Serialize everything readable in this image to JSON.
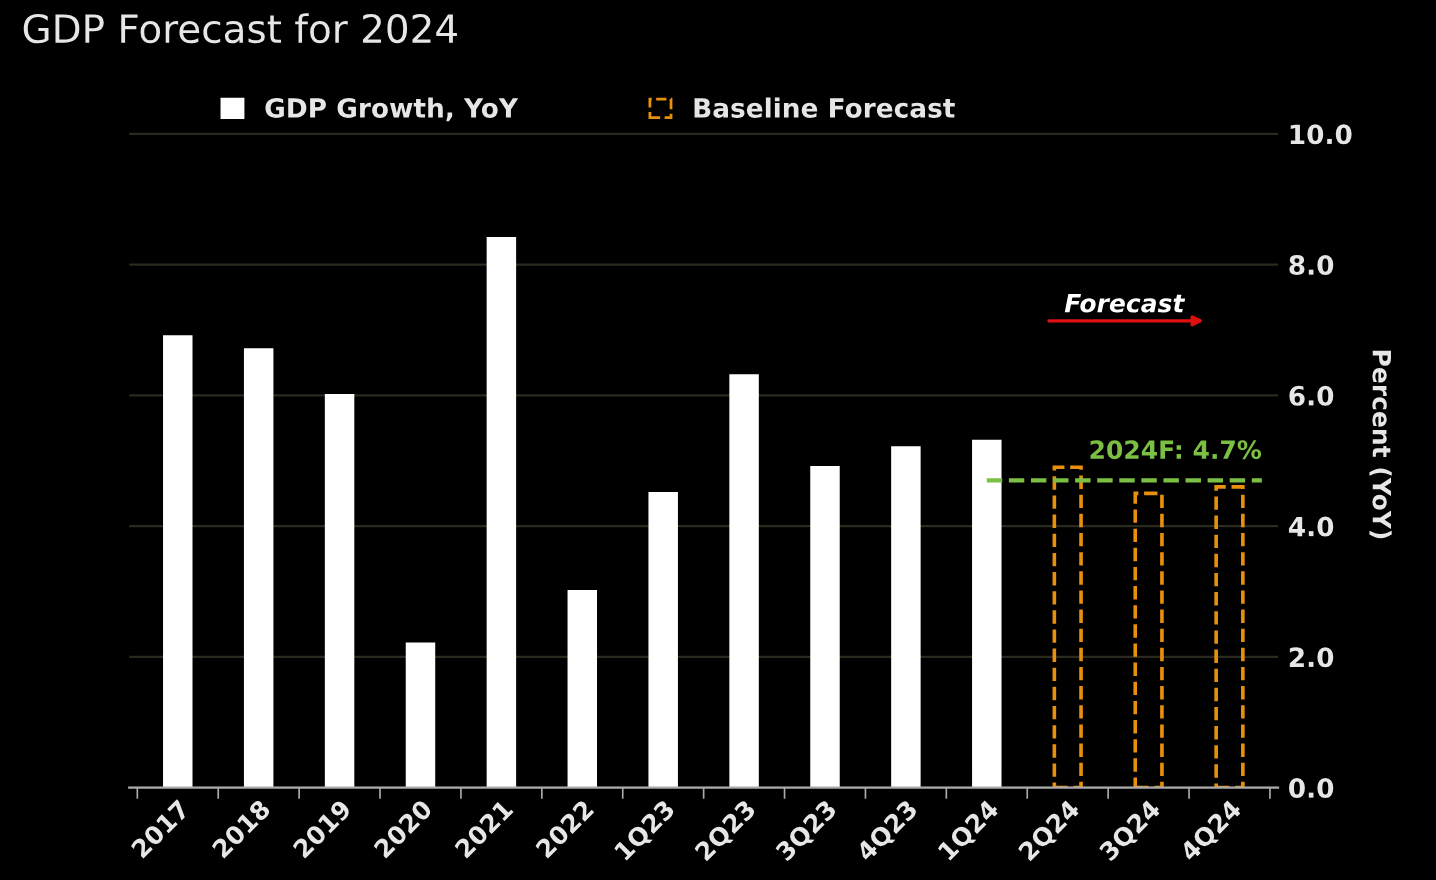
{
  "chart_data": {
    "type": "bar",
    "title": "GDP Forecast for 2024",
    "ylabel": "Percent (YoY)",
    "categories": [
      "2017",
      "2018",
      "2019",
      "2020",
      "2021",
      "2022",
      "1Q23",
      "2Q23",
      "3Q23",
      "4Q23",
      "1Q24",
      "2Q24",
      "3Q24",
      "4Q24"
    ],
    "series": [
      {
        "name": "GDP Growth, YoY",
        "color": "#ffffff",
        "values": [
          6.9,
          6.7,
          6.0,
          2.2,
          8.4,
          3.0,
          4.5,
          6.3,
          4.9,
          5.2,
          5.3,
          null,
          null,
          null
        ]
      },
      {
        "name": "Baseline Forecast",
        "color": "#e8900c",
        "line_style": "dashed",
        "values": [
          null,
          null,
          null,
          null,
          null,
          null,
          null,
          null,
          null,
          null,
          null,
          4.9,
          4.5,
          4.6
        ]
      }
    ],
    "ylim": [
      0,
      10.5
    ],
    "yticks": [
      {
        "value": 0,
        "label": "0.0"
      },
      {
        "value": 2,
        "label": "2.0"
      },
      {
        "value": 4,
        "label": "4.0"
      },
      {
        "value": 6,
        "label": "6.0"
      },
      {
        "value": 8,
        "label": "8.0"
      },
      {
        "value": 10,
        "label": "10.0"
      }
    ],
    "ref_lines": [
      {
        "axis": "y",
        "value": 4.7,
        "label": "2024F: 4.7%",
        "color": "#7cc043",
        "line_style": "dashed"
      }
    ],
    "annotations": [
      "Forecast"
    ],
    "grid": "y",
    "legend": "top left"
  }
}
